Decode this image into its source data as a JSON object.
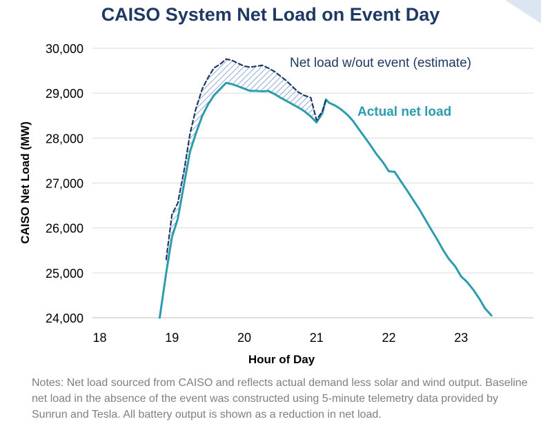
{
  "chart_data": {
    "type": "line",
    "title": "CAISO System Net Load on Event Day",
    "xlabel": "Hour of Day",
    "ylabel": "CAISO Net Load (MW)",
    "xlim": [
      17.9,
      24.0
    ],
    "ylim": [
      24000,
      30000
    ],
    "x_ticks": [
      18,
      19,
      20,
      21,
      22,
      23
    ],
    "x_tick_labels": [
      "18",
      "19",
      "20",
      "21",
      "22",
      "23"
    ],
    "y_ticks": [
      24000,
      25000,
      26000,
      27000,
      28000,
      29000,
      30000
    ],
    "y_tick_labels": [
      "24,000",
      "25,000",
      "26,000",
      "27,000",
      "28,000",
      "29,000",
      "30,000"
    ],
    "grid": "horizontal",
    "series": [
      {
        "name": "Actual net load",
        "color": "#2a9cad",
        "style": "solid",
        "points": [
          [
            18.83,
            24000
          ],
          [
            18.92,
            25000
          ],
          [
            19.0,
            25800
          ],
          [
            19.08,
            26200
          ],
          [
            19.17,
            27000
          ],
          [
            19.25,
            27700
          ],
          [
            19.33,
            28100
          ],
          [
            19.42,
            28500
          ],
          [
            19.5,
            28750
          ],
          [
            19.58,
            28950
          ],
          [
            19.67,
            29100
          ],
          [
            19.75,
            29230
          ],
          [
            19.83,
            29200
          ],
          [
            19.92,
            29150
          ],
          [
            20.0,
            29100
          ],
          [
            20.08,
            29050
          ],
          [
            20.17,
            29050
          ],
          [
            20.25,
            29040
          ],
          [
            20.33,
            29050
          ],
          [
            20.42,
            28980
          ],
          [
            20.5,
            28900
          ],
          [
            20.58,
            28830
          ],
          [
            20.67,
            28750
          ],
          [
            20.75,
            28680
          ],
          [
            20.83,
            28600
          ],
          [
            20.92,
            28480
          ],
          [
            21.0,
            28350
          ],
          [
            21.08,
            28550
          ],
          [
            21.13,
            28860
          ],
          [
            21.17,
            28790
          ],
          [
            21.25,
            28730
          ],
          [
            21.33,
            28650
          ],
          [
            21.42,
            28530
          ],
          [
            21.5,
            28390
          ],
          [
            21.58,
            28210
          ],
          [
            21.67,
            28010
          ],
          [
            21.75,
            27830
          ],
          [
            21.83,
            27640
          ],
          [
            21.92,
            27460
          ],
          [
            22.0,
            27260
          ],
          [
            22.08,
            27250
          ],
          [
            22.17,
            27030
          ],
          [
            22.25,
            26840
          ],
          [
            22.33,
            26640
          ],
          [
            22.42,
            26420
          ],
          [
            22.5,
            26200
          ],
          [
            22.58,
            25980
          ],
          [
            22.67,
            25740
          ],
          [
            22.75,
            25510
          ],
          [
            22.83,
            25310
          ],
          [
            22.92,
            25140
          ],
          [
            23.0,
            24920
          ],
          [
            23.08,
            24800
          ],
          [
            23.17,
            24620
          ],
          [
            23.25,
            24430
          ],
          [
            23.33,
            24210
          ],
          [
            23.42,
            24050
          ]
        ]
      },
      {
        "name": "Net load w/out event (estimate)",
        "color": "#1f3864",
        "style": "dashed",
        "points": [
          [
            18.92,
            25300
          ],
          [
            19.0,
            26300
          ],
          [
            19.08,
            26550
          ],
          [
            19.17,
            27300
          ],
          [
            19.25,
            28100
          ],
          [
            19.33,
            28650
          ],
          [
            19.42,
            29100
          ],
          [
            19.5,
            29350
          ],
          [
            19.58,
            29560
          ],
          [
            19.67,
            29650
          ],
          [
            19.75,
            29760
          ],
          [
            19.83,
            29730
          ],
          [
            19.92,
            29660
          ],
          [
            20.0,
            29600
          ],
          [
            20.08,
            29580
          ],
          [
            20.17,
            29600
          ],
          [
            20.25,
            29620
          ],
          [
            20.33,
            29560
          ],
          [
            20.42,
            29480
          ],
          [
            20.5,
            29380
          ],
          [
            20.58,
            29280
          ],
          [
            20.67,
            29140
          ],
          [
            20.75,
            29020
          ],
          [
            20.83,
            28950
          ],
          [
            20.92,
            28900
          ],
          [
            21.0,
            28400
          ],
          [
            21.08,
            28600
          ],
          [
            21.13,
            28860
          ]
        ]
      }
    ],
    "annotations": [
      {
        "text": "Net load w/out event (estimate)",
        "color": "#1f3864",
        "bold": false
      },
      {
        "text": "Actual net load",
        "color": "#2a9cad",
        "bold": true
      }
    ],
    "shaded_region": {
      "between": [
        "Net load w/out event (estimate)",
        "Actual net load"
      ],
      "pattern": "diagonal-hatch",
      "color": "#8ea9db"
    }
  },
  "notes": "Notes: Net load sourced from CAISO and reflects actual demand less solar and wind output. Baseline net load in the absence of the event was constructed using 5-minute telemetry data provided by Sunrun and Tesla. All battery output is shown as a reduction in net load.",
  "colors": {
    "title": "#1f3864",
    "corner_tab": "#dce6f2"
  }
}
